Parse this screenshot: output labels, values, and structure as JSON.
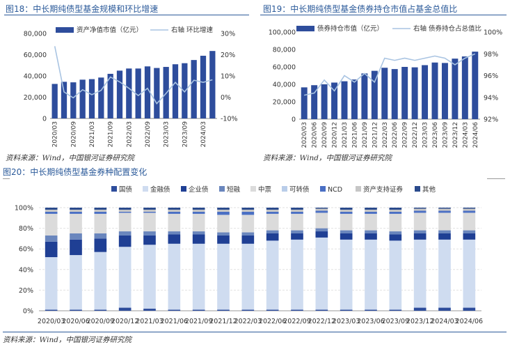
{
  "colors": {
    "bar": "#2e4d9c",
    "line": "#a9c4e2",
    "axis": "#333333",
    "title": "#2b5a9a",
    "stack": [
      "#2e4d9c",
      "#cfdcf0",
      "#1f3f94",
      "#6a86bd",
      "#dbdbdb",
      "#b9cde9",
      "#4a6fc4",
      "#c6c6c6",
      "#2a4a8c"
    ]
  },
  "fig18": {
    "title": "图18：中长期纯债型基金规模和环比增速",
    "source": "资料来源：Wind，中国银河证券研究院"
  },
  "fig19": {
    "title": "图19：中长期纯债型基金债券持仓市值占基金总值比",
    "source": "资料来源：Wind，中国银河证券研究院"
  },
  "fig20": {
    "title": "图20：中长期纯债型基金券种配置变化",
    "source": "资料来源：Wind，中国银河证券研究院"
  },
  "chart_data": [
    {
      "id": "fig18",
      "type": "bar+line",
      "title": "中长期纯债型基金规模和环比增速",
      "x": [
        "2020/03",
        "2020/06",
        "2020/09",
        "2020/12",
        "2021/03",
        "2021/06",
        "2021/09",
        "2021/12",
        "2022/03",
        "2022/06",
        "2022/09",
        "2022/12",
        "2023/03",
        "2023/06",
        "2023/09",
        "2023/12",
        "2024/03",
        "2024/06"
      ],
      "xtick_labels": [
        "2020/03",
        "2020/09",
        "2021/03",
        "2021/09",
        "2022/03",
        "2022/09",
        "2023/03",
        "2023/09",
        "2024/03"
      ],
      "series": [
        {
          "name": "资产净值市值（亿元）",
          "axis": "left",
          "kind": "bar",
          "values": [
            32500,
            34500,
            34000,
            36500,
            37000,
            38500,
            42000,
            45000,
            47000,
            47000,
            49000,
            47500,
            48500,
            51000,
            52000,
            55000,
            59000,
            63500
          ]
        },
        {
          "name": "右轴 环比增速",
          "axis": "right",
          "kind": "line",
          "values": [
            24,
            2.5,
            -0.3,
            3.5,
            1.2,
            3.2,
            9.5,
            7.2,
            4.2,
            0.8,
            4.2,
            -3.0,
            1.8,
            7.0,
            2.5,
            8.0,
            7.0,
            8.2
          ]
        }
      ],
      "ylim_left": [
        0,
        80000
      ],
      "yticks_left": [
        "0",
        "20,000",
        "40,000",
        "60,000",
        "80,000"
      ],
      "ylim_right": [
        -10,
        30
      ],
      "yticks_right": [
        "-10%",
        "0%",
        "10%",
        "20%",
        "30%"
      ]
    },
    {
      "id": "fig19",
      "type": "bar+line",
      "title": "中长期纯债型基金债券持仓市值占基金总值比",
      "x": [
        "2020/03",
        "2020/06",
        "2020/09",
        "2020/12",
        "2021/03",
        "2021/06",
        "2021/09",
        "2021/12",
        "2022/03",
        "2022/06",
        "2022/09",
        "2022/12",
        "2023/03",
        "2023/06",
        "2023/09",
        "2023/12",
        "2024/03",
        "2024/06"
      ],
      "xtick_labels": [
        "2020/03",
        "2020/06",
        "2020/09",
        "2020/12",
        "2021/03",
        "2021/06",
        "2021/09",
        "2021/12",
        "2022/03",
        "2022/06",
        "2022/09",
        "2022/12",
        "2023/03",
        "2023/06",
        "2023/09",
        "2023/12",
        "2024/03",
        "2024/06"
      ],
      "series": [
        {
          "name": "债券持仓市值（亿元）",
          "axis": "left",
          "kind": "bar",
          "values": [
            36500,
            39000,
            40000,
            42000,
            43500,
            45500,
            52500,
            55500,
            59000,
            57500,
            60000,
            59500,
            62000,
            65000,
            64500,
            69500,
            72000,
            77500
          ]
        },
        {
          "name": "右轴 债券持仓占总值比",
          "axis": "right",
          "kind": "line",
          "values": [
            94.2,
            94.4,
            95.6,
            94.6,
            96.0,
            95.4,
            96.2,
            95.4,
            97.6,
            97.4,
            97.6,
            97.4,
            97.6,
            97.8,
            97.6,
            97.0,
            97.6,
            98.0
          ]
        }
      ],
      "ylim_left": [
        0,
        100000
      ],
      "yticks_left": [
        "0",
        "20,000",
        "40,000",
        "60,000",
        "80,000",
        "100,000"
      ],
      "ylim_right": [
        92,
        100
      ],
      "yticks_right": [
        "92%",
        "94%",
        "96%",
        "98%",
        "100%"
      ]
    },
    {
      "id": "fig20",
      "type": "stacked-bar",
      "title": "中长期纯债型基金券种配置变化",
      "categories": [
        "2020/03",
        "2020/06",
        "2020/09",
        "2020/12",
        "2021/03",
        "2021/06",
        "2021/09",
        "2021/12",
        "2022/03",
        "2022/06",
        "2022/09",
        "2022/12",
        "2023/03",
        "2023/06",
        "2023/09",
        "2023/12",
        "2024/03",
        "2024/06"
      ],
      "ylim": [
        0,
        100
      ],
      "yticks": [
        "0%",
        "20%",
        "40%",
        "60%",
        "80%",
        "100%"
      ],
      "series": [
        {
          "name": "国债",
          "values": [
            1,
            1,
            1,
            3,
            2,
            1,
            1,
            1,
            1,
            1,
            1,
            1,
            1,
            1,
            1,
            3,
            3,
            3
          ]
        },
        {
          "name": "金融债",
          "values": [
            51,
            53,
            56,
            59,
            62,
            64,
            64,
            64,
            64,
            67,
            68,
            70,
            68,
            68,
            67,
            66,
            66,
            66
          ]
        },
        {
          "name": "企业债",
          "values": [
            15,
            15,
            13,
            11,
            9,
            9,
            9,
            8,
            8,
            7,
            6,
            6,
            6,
            6,
            6,
            6,
            6,
            6
          ]
        },
        {
          "name": "短融",
          "values": [
            6,
            6,
            5,
            4,
            4,
            3,
            3,
            3,
            3,
            3,
            3,
            3,
            3,
            3,
            3,
            3,
            3,
            3
          ]
        },
        {
          "name": "中票",
          "values": [
            21,
            19,
            19,
            18,
            18,
            17,
            17,
            17,
            17,
            16,
            16,
            15,
            16,
            16,
            17,
            17,
            17,
            17
          ]
        },
        {
          "name": "可转债",
          "values": [
            0,
            0,
            0,
            0,
            0,
            0,
            0,
            0,
            0,
            0,
            0,
            0,
            0,
            0,
            0,
            0,
            0,
            0
          ]
        },
        {
          "name": "NCD",
          "values": [
            2,
            2,
            2,
            1,
            1,
            2,
            2,
            3,
            3,
            2,
            2,
            2,
            2,
            2,
            2,
            2,
            2,
            2
          ]
        },
        {
          "name": "资产支持证券",
          "values": [
            2,
            2,
            2,
            2,
            2,
            2,
            2,
            2,
            2,
            2,
            2,
            2,
            2,
            2,
            2,
            2,
            2,
            2
          ]
        },
        {
          "name": "其他",
          "values": [
            2,
            2,
            2,
            2,
            2,
            2,
            2,
            2,
            2,
            2,
            2,
            1,
            2,
            2,
            2,
            1,
            1,
            1
          ]
        }
      ]
    }
  ]
}
